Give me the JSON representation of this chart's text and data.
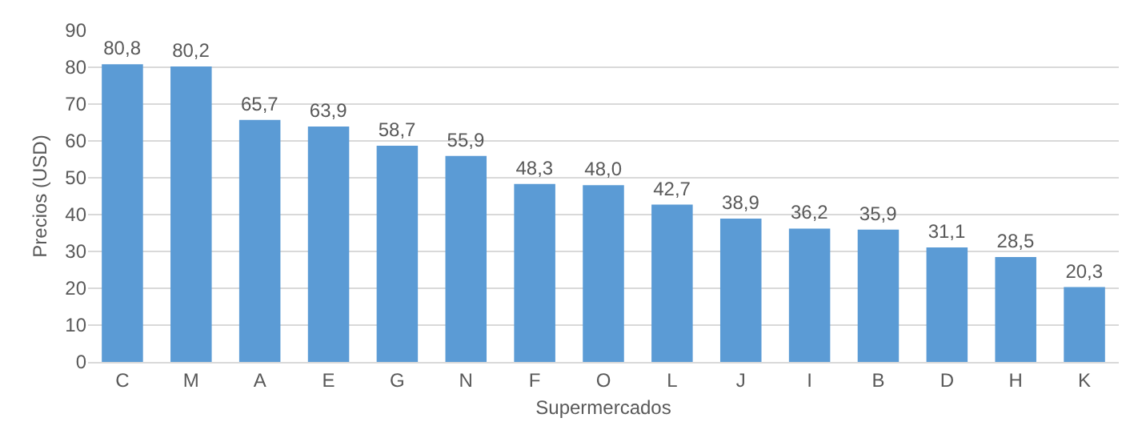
{
  "chart_data": {
    "type": "bar",
    "xlabel": "Supermercados",
    "ylabel": "Precios (USD)",
    "categories": [
      "C",
      "M",
      "A",
      "E",
      "G",
      "N",
      "F",
      "O",
      "L",
      "J",
      "I",
      "B",
      "D",
      "H",
      "K"
    ],
    "values": [
      80.8,
      80.2,
      65.7,
      63.9,
      58.7,
      55.9,
      48.3,
      48.0,
      42.7,
      38.9,
      36.2,
      35.9,
      31.1,
      28.5,
      20.3
    ],
    "value_labels": [
      "80,8",
      "80,2",
      "65,7",
      "63,9",
      "58,7",
      "55,9",
      "48,3",
      "48,0",
      "42,7",
      "38,9",
      "36,2",
      "35,9",
      "31,1",
      "28,5",
      "20,3"
    ],
    "color": "#5b9bd5",
    "ylim": [
      0,
      90
    ],
    "yticks": [
      0,
      10,
      20,
      30,
      40,
      50,
      60,
      70,
      80,
      90
    ],
    "grid": "y"
  }
}
